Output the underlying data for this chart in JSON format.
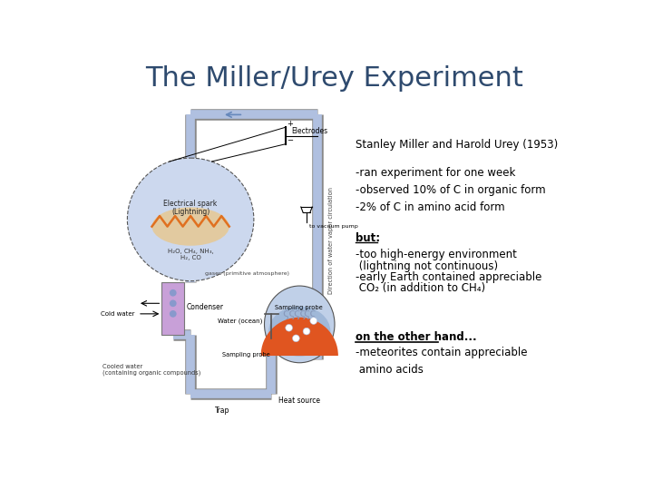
{
  "title": "The Miller/Urey Experiment",
  "title_color": "#2e4a6e",
  "title_fontsize": 22,
  "background_color": "#ffffff",
  "stanley_text": "Stanley Miller and Harold Urey (1953)",
  "bullet1": "-ran experiment for one week\n-observed 10% of C in organic form\n-2% of C in amino acid form",
  "but_label": "but:",
  "bullet2_line1": "-too high-energy environment",
  "bullet2_line2": " (lightning not continuous)",
  "bullet2_line3": "-early Earth contained appreciable",
  "bullet2_line4": " CO₂ (in addition to CH₄)",
  "other_label": "on the other hand...",
  "bullet3": "-meteorites contain appreciable\n amino acids",
  "blue_light": "#b8c8e8",
  "blue_mid": "#8899cc",
  "purple_cond": "#c8a0d8",
  "orange_glow": "#f5c060",
  "spark_color": "#e07020",
  "flask_fill": "#ccd8ee",
  "water_blue": "#a0b8d8",
  "red_heat": "#e05520",
  "tube_fill": "#b0c0e0",
  "tube_edge": "#888888"
}
